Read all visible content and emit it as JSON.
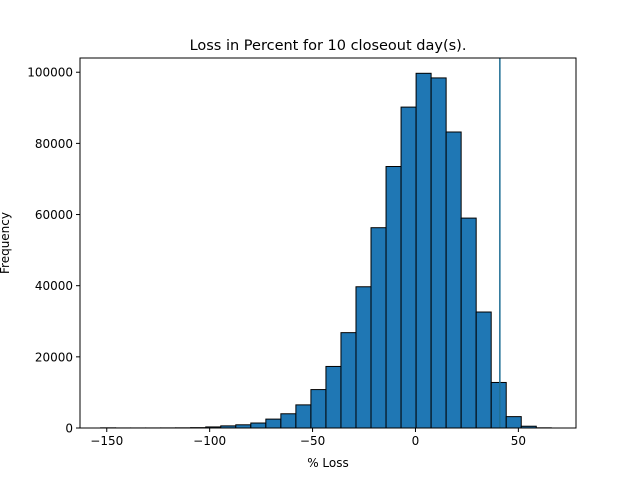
{
  "chart_data": {
    "type": "bar",
    "title": "Loss in Percent for 10 closeout day(s).",
    "xlabel": "% Loss",
    "ylabel": "Frequency",
    "xlim": [
      -163,
      78
    ],
    "ylim": [
      0,
      104000
    ],
    "xticks": [
      -150,
      -100,
      -50,
      0,
      50
    ],
    "yticks": [
      0,
      20000,
      40000,
      60000,
      80000,
      100000
    ],
    "bin_width": 7.3,
    "bins": [
      {
        "left": -153.0,
        "value": 50
      },
      {
        "left": -145.7,
        "value": 20
      },
      {
        "left": -138.4,
        "value": 20
      },
      {
        "left": -131.1,
        "value": 20
      },
      {
        "left": -123.8,
        "value": 30
      },
      {
        "left": -116.5,
        "value": 50
      },
      {
        "left": -109.2,
        "value": 100
      },
      {
        "left": -101.9,
        "value": 300
      },
      {
        "left": -94.6,
        "value": 600
      },
      {
        "left": -87.3,
        "value": 900
      },
      {
        "left": -80.0,
        "value": 1400
      },
      {
        "left": -72.7,
        "value": 2500
      },
      {
        "left": -65.4,
        "value": 4000
      },
      {
        "left": -58.1,
        "value": 6500
      },
      {
        "left": -50.8,
        "value": 10800
      },
      {
        "left": -43.5,
        "value": 17300
      },
      {
        "left": -36.2,
        "value": 26800
      },
      {
        "left": -28.9,
        "value": 39700
      },
      {
        "left": -21.6,
        "value": 56300
      },
      {
        "left": -14.3,
        "value": 73500
      },
      {
        "left": -7.0,
        "value": 90200
      },
      {
        "left": 0.3,
        "value": 99700
      },
      {
        "left": 7.6,
        "value": 98400
      },
      {
        "left": 14.9,
        "value": 83200
      },
      {
        "left": 22.2,
        "value": 59000
      },
      {
        "left": 29.5,
        "value": 32600
      },
      {
        "left": 36.8,
        "value": 12800
      },
      {
        "left": 44.1,
        "value": 3200
      },
      {
        "left": 51.4,
        "value": 500
      },
      {
        "left": 58.7,
        "value": 50
      }
    ],
    "vline": {
      "x": 41,
      "color": "#1f6e94"
    },
    "bar_color": "#1f77b4",
    "edge_color": "#000000",
    "grid": false,
    "legend": "none"
  }
}
